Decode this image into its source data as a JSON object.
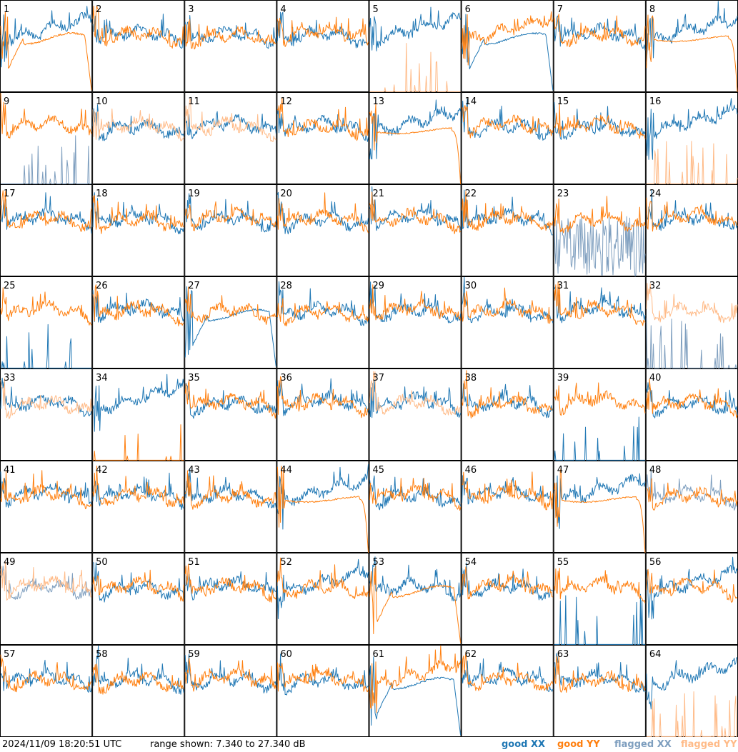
{
  "colors": {
    "good_xx": "#1f77b4",
    "good_yy": "#ff7f0e",
    "flagged_xx": "#7f9fbf",
    "flagged_yy": "#ffbb88"
  },
  "footer": {
    "timestamp": "2024/11/09 18:20:51 UTC",
    "range_text": "range shown: 7.340 to 27.340 dB"
  },
  "legend": {
    "good_label": "good",
    "flagged_label": "flagged",
    "xx": "XX",
    "yy": "YY"
  },
  "chart_data": {
    "type": "line",
    "grid": {
      "rows": 8,
      "cols": 8
    },
    "y_range_db": [
      7.34,
      27.34
    ],
    "panels": [
      {
        "id": "1",
        "xx": "good",
        "yy": "good",
        "shape_xx": "rise",
        "shape_yy": "dip_decay"
      },
      {
        "id": "2",
        "xx": "good",
        "yy": "good",
        "shape_xx": "normal",
        "shape_yy": "normal"
      },
      {
        "id": "3",
        "xx": "good",
        "yy": "good",
        "shape_xx": "normal",
        "shape_yy": "normal"
      },
      {
        "id": "4",
        "xx": "good",
        "yy": "good",
        "shape_xx": "normal",
        "shape_yy": "normal"
      },
      {
        "id": "5",
        "xx": "good",
        "yy": "flagged",
        "shape_xx": "rise",
        "shape_yy": "flat_spikes"
      },
      {
        "id": "6",
        "xx": "good",
        "yy": "good",
        "shape_xx": "dip_decay",
        "shape_yy": "rise"
      },
      {
        "id": "7",
        "xx": "good",
        "yy": "good",
        "shape_xx": "normal",
        "shape_yy": "normal"
      },
      {
        "id": "8",
        "xx": "good",
        "yy": "good",
        "shape_xx": "rise",
        "shape_yy": "decay"
      },
      {
        "id": "9",
        "xx": "flagged",
        "yy": "good",
        "shape_xx": "flat_spikes",
        "shape_yy": "normal"
      },
      {
        "id": "10",
        "xx": "good",
        "yy": "flagged",
        "shape_xx": "normal",
        "shape_yy": "normal"
      },
      {
        "id": "11",
        "xx": "good",
        "yy": "flagged",
        "shape_xx": "normal",
        "shape_yy": "normal"
      },
      {
        "id": "12",
        "xx": "good",
        "yy": "good",
        "shape_xx": "normal",
        "shape_yy": "normal"
      },
      {
        "id": "13",
        "xx": "good",
        "yy": "good",
        "shape_xx": "rise",
        "shape_yy": "decay"
      },
      {
        "id": "14",
        "xx": "good",
        "yy": "good",
        "shape_xx": "normal",
        "shape_yy": "normal"
      },
      {
        "id": "15",
        "xx": "good",
        "yy": "good",
        "shape_xx": "normal",
        "shape_yy": "normal"
      },
      {
        "id": "16",
        "xx": "good",
        "yy": "flagged",
        "shape_xx": "rise",
        "shape_yy": "flat_spikes"
      },
      {
        "id": "17",
        "xx": "good",
        "yy": "good",
        "shape_xx": "normal",
        "shape_yy": "normal"
      },
      {
        "id": "18",
        "xx": "good",
        "yy": "good",
        "shape_xx": "normal",
        "shape_yy": "normal"
      },
      {
        "id": "19",
        "xx": "good",
        "yy": "good",
        "shape_xx": "normal",
        "shape_yy": "normal"
      },
      {
        "id": "20",
        "xx": "good",
        "yy": "good",
        "shape_xx": "normal",
        "shape_yy": "normal"
      },
      {
        "id": "21",
        "xx": "good",
        "yy": "good",
        "shape_xx": "normal",
        "shape_yy": "normal"
      },
      {
        "id": "22",
        "xx": "good",
        "yy": "good",
        "shape_xx": "normal",
        "shape_yy": "normal"
      },
      {
        "id": "23",
        "xx": "flagged",
        "yy": "good",
        "shape_xx": "noisy_low",
        "shape_yy": "normal"
      },
      {
        "id": "24",
        "xx": "good",
        "yy": "good",
        "shape_xx": "normal",
        "shape_yy": "normal"
      },
      {
        "id": "25",
        "xx": "good",
        "yy": "good",
        "shape_xx": "flat_spikes",
        "shape_yy": "normal"
      },
      {
        "id": "26",
        "xx": "good",
        "yy": "good",
        "shape_xx": "normal",
        "shape_yy": "normal"
      },
      {
        "id": "27",
        "xx": "good",
        "yy": "good",
        "shape_xx": "dip_decay",
        "shape_yy": "normal"
      },
      {
        "id": "28",
        "xx": "good",
        "yy": "good",
        "shape_xx": "normal",
        "shape_yy": "normal"
      },
      {
        "id": "29",
        "xx": "good",
        "yy": "good",
        "shape_xx": "normal",
        "shape_yy": "normal"
      },
      {
        "id": "30",
        "xx": "good",
        "yy": "good",
        "shape_xx": "normal",
        "shape_yy": "normal"
      },
      {
        "id": "31",
        "xx": "good",
        "yy": "good",
        "shape_xx": "normal",
        "shape_yy": "normal"
      },
      {
        "id": "32",
        "xx": "flagged",
        "yy": "flagged",
        "shape_xx": "flat_spikes",
        "shape_yy": "normal"
      },
      {
        "id": "33",
        "xx": "good",
        "yy": "flagged",
        "shape_xx": "normal",
        "shape_yy": "normal"
      },
      {
        "id": "34",
        "xx": "good",
        "yy": "good",
        "shape_xx": "rise",
        "shape_yy": "flat_spikes"
      },
      {
        "id": "35",
        "xx": "good",
        "yy": "good",
        "shape_xx": "normal",
        "shape_yy": "normal"
      },
      {
        "id": "36",
        "xx": "good",
        "yy": "good",
        "shape_xx": "normal",
        "shape_yy": "normal"
      },
      {
        "id": "37",
        "xx": "good",
        "yy": "flagged",
        "shape_xx": "normal",
        "shape_yy": "normal"
      },
      {
        "id": "38",
        "xx": "good",
        "yy": "good",
        "shape_xx": "normal",
        "shape_yy": "normal"
      },
      {
        "id": "39",
        "xx": "good",
        "yy": "good",
        "shape_xx": "flat_spikes",
        "shape_yy": "normal"
      },
      {
        "id": "40",
        "xx": "good",
        "yy": "good",
        "shape_xx": "normal",
        "shape_yy": "normal"
      },
      {
        "id": "41",
        "xx": "good",
        "yy": "good",
        "shape_xx": "normal",
        "shape_yy": "normal"
      },
      {
        "id": "42",
        "xx": "good",
        "yy": "good",
        "shape_xx": "normal",
        "shape_yy": "normal"
      },
      {
        "id": "43",
        "xx": "good",
        "yy": "good",
        "shape_xx": "normal",
        "shape_yy": "normal"
      },
      {
        "id": "44",
        "xx": "good",
        "yy": "good",
        "shape_xx": "rise",
        "shape_yy": "decay"
      },
      {
        "id": "45",
        "xx": "good",
        "yy": "good",
        "shape_xx": "normal",
        "shape_yy": "normal"
      },
      {
        "id": "46",
        "xx": "good",
        "yy": "good",
        "shape_xx": "normal",
        "shape_yy": "normal"
      },
      {
        "id": "47",
        "xx": "good",
        "yy": "good",
        "shape_xx": "rise",
        "shape_yy": "decay"
      },
      {
        "id": "48",
        "xx": "flagged",
        "yy": "good",
        "shape_xx": "normal",
        "shape_yy": "normal"
      },
      {
        "id": "49",
        "xx": "flagged",
        "yy": "flagged",
        "shape_xx": "normal",
        "shape_yy": "normal"
      },
      {
        "id": "50",
        "xx": "good",
        "yy": "good",
        "shape_xx": "normal",
        "shape_yy": "normal"
      },
      {
        "id": "51",
        "xx": "good",
        "yy": "good",
        "shape_xx": "normal",
        "shape_yy": "normal"
      },
      {
        "id": "52",
        "xx": "good",
        "yy": "good",
        "shape_xx": "rise",
        "shape_yy": "normal"
      },
      {
        "id": "53",
        "xx": "good",
        "yy": "good",
        "shape_xx": "normal",
        "shape_yy": "dip_decay"
      },
      {
        "id": "54",
        "xx": "good",
        "yy": "good",
        "shape_xx": "normal",
        "shape_yy": "normal"
      },
      {
        "id": "55",
        "xx": "good",
        "yy": "good",
        "shape_xx": "flat_spikes",
        "shape_yy": "normal"
      },
      {
        "id": "56",
        "xx": "good",
        "yy": "good",
        "shape_xx": "rise",
        "shape_yy": "normal"
      },
      {
        "id": "57",
        "xx": "good",
        "yy": "good",
        "shape_xx": "normal",
        "shape_yy": "normal"
      },
      {
        "id": "58",
        "xx": "good",
        "yy": "good",
        "shape_xx": "normal",
        "shape_yy": "normal"
      },
      {
        "id": "59",
        "xx": "good",
        "yy": "good",
        "shape_xx": "normal",
        "shape_yy": "normal"
      },
      {
        "id": "60",
        "xx": "good",
        "yy": "good",
        "shape_xx": "normal",
        "shape_yy": "normal"
      },
      {
        "id": "61",
        "xx": "good",
        "yy": "good",
        "shape_xx": "dip_decay",
        "shape_yy": "rise"
      },
      {
        "id": "62",
        "xx": "good",
        "yy": "good",
        "shape_xx": "normal",
        "shape_yy": "normal"
      },
      {
        "id": "63",
        "xx": "good",
        "yy": "good",
        "shape_xx": "normal",
        "shape_yy": "normal"
      },
      {
        "id": "64",
        "xx": "good",
        "yy": "flagged",
        "shape_xx": "rise",
        "shape_yy": "flat_spikes"
      }
    ]
  }
}
